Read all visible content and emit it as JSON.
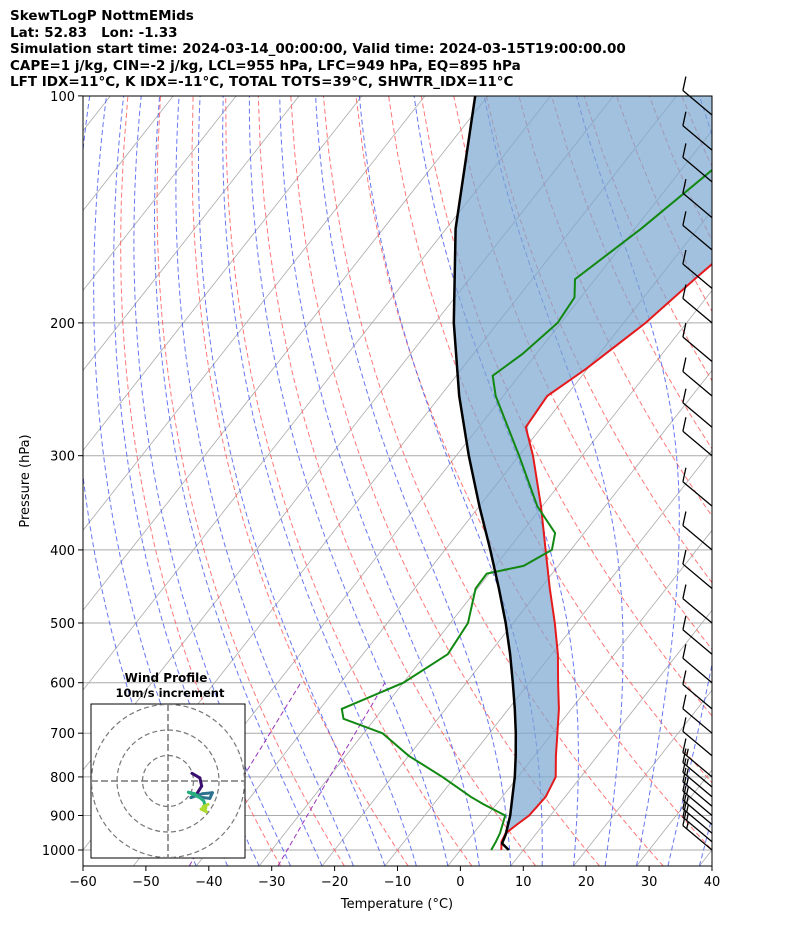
{
  "header": {
    "title": "SkewTLogP NottmEMids",
    "location": "Lat: 52.83   Lon: -1.33",
    "times": "Simulation start time: 2024-03-14_00:00:00, Valid time: 2024-03-15T19:00:00.00",
    "indices_1": "CAPE=1 j/kg, CIN=-2 j/kg, LCL=955 hPa, LFC=949 hPa, EQ=895 hPa",
    "indices_2": "LFT IDX=11°C, K IDX=-11°C, TOTAL TOTS=39°C, SHWTR_IDX=11°C"
  },
  "chart_data": {
    "type": "skew-t",
    "xlabel": "Temperature (°C)",
    "ylabel": "Pressure (hPa)",
    "xlim": [
      -60,
      40
    ],
    "ylim": [
      1050,
      100
    ],
    "xticks": [
      -60,
      -50,
      -40,
      -30,
      -20,
      -10,
      0,
      10,
      20,
      30,
      40
    ],
    "xtick_labels": [
      "−60",
      "−50",
      "−40",
      "−30",
      "−20",
      "−10",
      "0",
      "10",
      "20",
      "30",
      "40"
    ],
    "yticks": [
      1000,
      900,
      800,
      700,
      600,
      500,
      400,
      300,
      200,
      100
    ],
    "ytick_labels": [
      "1000",
      "900",
      "800",
      "700",
      "600",
      "500",
      "400",
      "300",
      "200",
      "100"
    ],
    "colors": {
      "temperature": "#e41a1c",
      "dewpoint": "#118811",
      "parcel": "#000000",
      "cape_fill": "#7ba7d0",
      "dry_adiabat": "#ff5555",
      "moist_adiabat": "#4455ee",
      "mixing_ratio": "#9933bb",
      "isotherm": "#aaaaaa"
    },
    "temperature": [
      {
        "p": 1000,
        "t": 6.5
      },
      {
        "p": 975,
        "t": 5.5
      },
      {
        "p": 950,
        "t": 5.1
      },
      {
        "p": 925,
        "t": 5.8
      },
      {
        "p": 900,
        "t": 6.6
      },
      {
        "p": 850,
        "t": 6.9
      },
      {
        "p": 800,
        "t": 6.0
      },
      {
        "p": 750,
        "t": 3.4
      },
      {
        "p": 700,
        "t": 0.8
      },
      {
        "p": 650,
        "t": -2.0
      },
      {
        "p": 600,
        "t": -5.4
      },
      {
        "p": 550,
        "t": -9.0
      },
      {
        "p": 500,
        "t": -13.4
      },
      {
        "p": 450,
        "t": -18.5
      },
      {
        "p": 400,
        "t": -24.0
      },
      {
        "p": 350,
        "t": -30.2
      },
      {
        "p": 300,
        "t": -37.8
      },
      {
        "p": 275,
        "t": -42.5
      },
      {
        "p": 250,
        "t": -43.0
      },
      {
        "p": 230,
        "t": -40.2
      },
      {
        "p": 200,
        "t": -36.5
      },
      {
        "p": 175,
        "t": -34.2
      },
      {
        "p": 150,
        "t": -31.2
      },
      {
        "p": 135,
        "t": -28.8
      },
      {
        "p": 120,
        "t": -29.0
      },
      {
        "p": 100,
        "t": -30.0
      }
    ],
    "dewpoint": [
      {
        "p": 1000,
        "t": 4.9
      },
      {
        "p": 975,
        "t": 4.6
      },
      {
        "p": 950,
        "t": 4.2
      },
      {
        "p": 900,
        "t": 2.8
      },
      {
        "p": 870,
        "t": -2.0
      },
      {
        "p": 850,
        "t": -5.0
      },
      {
        "p": 800,
        "t": -12.0
      },
      {
        "p": 750,
        "t": -20.0
      },
      {
        "p": 700,
        "t": -27.0
      },
      {
        "p": 670,
        "t": -35.0
      },
      {
        "p": 650,
        "t": -36.5
      },
      {
        "p": 600,
        "t": -30.0
      },
      {
        "p": 550,
        "t": -26.5
      },
      {
        "p": 500,
        "t": -27.2
      },
      {
        "p": 450,
        "t": -30.3
      },
      {
        "p": 430,
        "t": -30.4
      },
      {
        "p": 420,
        "t": -25.5
      },
      {
        "p": 400,
        "t": -23.0
      },
      {
        "p": 380,
        "t": -24.6
      },
      {
        "p": 350,
        "t": -30.8
      },
      {
        "p": 300,
        "t": -40.0
      },
      {
        "p": 250,
        "t": -51.2
      },
      {
        "p": 235,
        "t": -54.2
      },
      {
        "p": 220,
        "t": -52.2
      },
      {
        "p": 200,
        "t": -50.5
      },
      {
        "p": 185,
        "t": -51.0
      },
      {
        "p": 175,
        "t": -53.2
      },
      {
        "p": 150,
        "t": -49.0
      },
      {
        "p": 125,
        "t": -45.0
      },
      {
        "p": 100,
        "t": -42.0
      }
    ],
    "parcel": [
      {
        "p": 1000,
        "t": 7.7
      },
      {
        "p": 980,
        "t": 5.8
      },
      {
        "p": 955,
        "t": 5.3
      },
      {
        "p": 900,
        "t": 3.6
      },
      {
        "p": 850,
        "t": 1.6
      },
      {
        "p": 800,
        "t": -0.5
      },
      {
        "p": 750,
        "t": -3.0
      },
      {
        "p": 700,
        "t": -5.8
      },
      {
        "p": 650,
        "t": -9.0
      },
      {
        "p": 600,
        "t": -12.6
      },
      {
        "p": 550,
        "t": -16.6
      },
      {
        "p": 500,
        "t": -21.2
      },
      {
        "p": 450,
        "t": -26.6
      },
      {
        "p": 400,
        "t": -32.8
      },
      {
        "p": 350,
        "t": -40.0
      },
      {
        "p": 300,
        "t": -48.0
      },
      {
        "p": 250,
        "t": -57.0
      },
      {
        "p": 200,
        "t": -67.0
      },
      {
        "p": 150,
        "t": -78.5
      },
      {
        "p": 100,
        "t": -92.0
      }
    ],
    "barbs": [
      {
        "p": 1000,
        "speed_kt": 15
      },
      {
        "p": 975,
        "speed_kt": 15
      },
      {
        "p": 950,
        "speed_kt": 15
      },
      {
        "p": 925,
        "speed_kt": 15
      },
      {
        "p": 900,
        "speed_kt": 15
      },
      {
        "p": 875,
        "speed_kt": 15
      },
      {
        "p": 850,
        "speed_kt": 15
      },
      {
        "p": 825,
        "speed_kt": 15
      },
      {
        "p": 800,
        "speed_kt": 15
      },
      {
        "p": 750,
        "speed_kt": 10
      },
      {
        "p": 700,
        "speed_kt": 10
      },
      {
        "p": 650,
        "speed_kt": 10
      },
      {
        "p": 600,
        "speed_kt": 10
      },
      {
        "p": 550,
        "speed_kt": 10
      },
      {
        "p": 500,
        "speed_kt": 10
      },
      {
        "p": 450,
        "speed_kt": 10
      },
      {
        "p": 400,
        "speed_kt": 10
      },
      {
        "p": 350,
        "speed_kt": 10
      },
      {
        "p": 300,
        "speed_kt": 10
      },
      {
        "p": 275,
        "speed_kt": 10
      },
      {
        "p": 250,
        "speed_kt": 10
      },
      {
        "p": 225,
        "speed_kt": 10
      },
      {
        "p": 200,
        "speed_kt": 10
      },
      {
        "p": 180,
        "speed_kt": 10
      },
      {
        "p": 160,
        "speed_kt": 10
      },
      {
        "p": 145,
        "speed_kt": 10
      },
      {
        "p": 130,
        "speed_kt": 10
      },
      {
        "p": 118,
        "speed_kt": 10
      },
      {
        "p": 106,
        "speed_kt": 10
      }
    ],
    "hodograph": {
      "title": "Wind Profile",
      "subtitle": "10m/s increment",
      "rings_ms": [
        10,
        20,
        30
      ],
      "trace": [
        {
          "u": 9.4,
          "v": 3.0
        },
        {
          "u": 12.5,
          "v": 1.2
        },
        {
          "u": 13.2,
          "v": -2.0
        },
        {
          "u": 11.0,
          "v": -5.5
        },
        {
          "u": 9.0,
          "v": -6.5
        },
        {
          "u": 13.5,
          "v": -5.0
        },
        {
          "u": 17.4,
          "v": -4.6
        },
        {
          "u": 16.4,
          "v": -6.8
        },
        {
          "u": 12.0,
          "v": -6.3
        },
        {
          "u": 8.0,
          "v": -4.4
        },
        {
          "u": 10.5,
          "v": -5.0
        },
        {
          "u": 14.0,
          "v": -7.8
        },
        {
          "u": 14.8,
          "v": -10.5
        },
        {
          "u": 13.0,
          "v": -11.0
        },
        {
          "u": 15.0,
          "v": -12.0
        },
        {
          "u": 13.8,
          "v": -10.0
        },
        {
          "u": 15.7,
          "v": -9.2
        }
      ]
    }
  }
}
